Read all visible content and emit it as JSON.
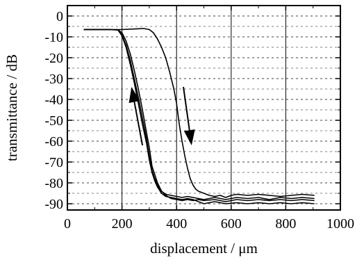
{
  "chart_data": {
    "type": "line",
    "xlabel": "displacement / μm",
    "ylabel": "transmittance / dB",
    "xlim": [
      0,
      1000
    ],
    "ylim": [
      -93,
      5
    ],
    "x_ticks": [
      "0",
      "200",
      "400",
      "600",
      "800",
      "1000"
    ],
    "y_ticks": [
      "0",
      "-10",
      "-20",
      "-30",
      "-40",
      "-50",
      "-60",
      "-70",
      "-80",
      "-90"
    ],
    "grid": {
      "vertical": "solid",
      "horizontal": "dashed"
    },
    "series": [
      {
        "x": [
          60,
          150,
          185,
          200,
          215,
          230,
          245,
          260,
          275,
          290,
          300,
          310,
          320,
          330,
          345,
          360,
          380,
          400,
          420,
          440,
          460,
          480,
          500,
          540,
          580,
          620,
          660,
          700,
          740,
          780,
          820,
          860,
          905
        ],
        "y": [
          -6.5,
          -6.5,
          -6.6,
          -8,
          -12,
          -18,
          -26,
          -35,
          -45,
          -56,
          -63,
          -72,
          -76,
          -80,
          -84,
          -86,
          -87.5,
          -88,
          -88.5,
          -88,
          -88.5,
          -88,
          -88.5,
          -88,
          -89,
          -88,
          -88.5,
          -88,
          -88.5,
          -88,
          -88.5,
          -88,
          -88.5
        ]
      },
      {
        "x": [
          60,
          150,
          185,
          200,
          215,
          230,
          245,
          260,
          275,
          290,
          300,
          310,
          320,
          330,
          345,
          360,
          380,
          400,
          420,
          440,
          460,
          480,
          500,
          540,
          580,
          620,
          660,
          700,
          740,
          780,
          820,
          860,
          905
        ],
        "y": [
          -6.5,
          -6.5,
          -6.7,
          -9,
          -14,
          -21,
          -30,
          -39,
          -49,
          -59,
          -67,
          -74,
          -78,
          -81,
          -84,
          -85.5,
          -86,
          -86.5,
          -87,
          -86.5,
          -87,
          -87.5,
          -88,
          -87,
          -88,
          -87,
          -87.5,
          -87,
          -88,
          -87,
          -87.5,
          -87,
          -87.5
        ]
      },
      {
        "x": [
          60,
          150,
          185,
          200,
          215,
          230,
          245,
          260,
          275,
          290,
          300,
          310,
          320,
          330,
          345,
          360,
          380,
          400,
          420,
          440,
          460,
          480,
          500,
          540,
          580,
          620,
          660,
          700,
          740,
          780,
          820,
          860,
          905
        ],
        "y": [
          -6.5,
          -6.5,
          -6.7,
          -9.5,
          -15,
          -23,
          -32,
          -42,
          -52,
          -61,
          -69,
          -75,
          -79,
          -82,
          -85,
          -86.5,
          -87,
          -87.5,
          -88,
          -87.5,
          -88,
          -89,
          -90,
          -89,
          -90,
          -89.5,
          -90,
          -89.5,
          -90,
          -89.5,
          -90,
          -89.5,
          -90
        ]
      },
      {
        "x": [
          60,
          150,
          200,
          250,
          280,
          300,
          315,
          330,
          345,
          360,
          375,
          390,
          400,
          410,
          420,
          430,
          440,
          450,
          460,
          470,
          480,
          500,
          520,
          540,
          560,
          580,
          600,
          620,
          660,
          700,
          740,
          780,
          820,
          860,
          905
        ],
        "y": [
          -6.5,
          -6.5,
          -6.5,
          -6.2,
          -6.0,
          -6.5,
          -8,
          -11,
          -15,
          -20,
          -27,
          -35,
          -42,
          -52,
          -60,
          -67,
          -73,
          -78,
          -81,
          -83,
          -84,
          -85,
          -86,
          -86.5,
          -86,
          -87,
          -86,
          -85.5,
          -86,
          -85.5,
          -86,
          -86.5,
          -86,
          -85.5,
          -86
        ]
      }
    ],
    "annotations": [
      {
        "type": "arrow",
        "direction": "down",
        "from": [
          425,
          -34
        ],
        "to": [
          455,
          -62
        ]
      },
      {
        "type": "arrow",
        "direction": "up",
        "from": [
          275,
          -62
        ],
        "to": [
          235,
          -34
        ]
      }
    ]
  }
}
